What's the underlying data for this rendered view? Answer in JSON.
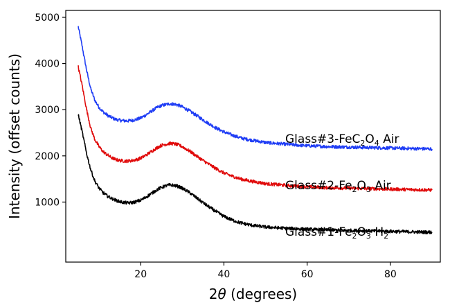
{
  "chart_data": {
    "type": "line",
    "xlabel_prefix": "2",
    "xlabel_symbol": "θ",
    "xlabel_suffix": " (degrees)",
    "ylabel": "Intensity (offset counts)",
    "xlim": [
      2,
      92
    ],
    "ylim": [
      -300,
      5150
    ],
    "xticks": [
      20,
      40,
      60,
      80
    ],
    "yticks": [
      1000,
      2000,
      3000,
      4000,
      5000
    ],
    "grid": false,
    "series": [
      {
        "name": "Glass#3-FeC2O4 Air",
        "label_parts": [
          {
            "t": "Glass#3-FeC",
            "sub": false
          },
          {
            "t": "2",
            "sub": true
          },
          {
            "t": "O",
            "sub": false
          },
          {
            "t": "4",
            "sub": true
          },
          {
            "t": " Air",
            "sub": false
          }
        ],
        "color": "#1f3df5",
        "x": [
          5,
          6,
          7,
          8,
          9,
          10,
          11,
          12,
          13,
          14,
          15,
          16,
          17,
          18,
          19,
          20,
          21,
          22,
          23,
          24,
          25,
          26,
          27,
          28,
          29,
          30,
          32,
          34,
          36,
          38,
          40,
          42,
          44,
          46,
          48,
          50,
          55,
          60,
          65,
          70,
          75,
          80,
          85,
          90
        ],
        "y": [
          4800,
          4350,
          3850,
          3450,
          3200,
          3050,
          2950,
          2880,
          2830,
          2790,
          2770,
          2760,
          2760,
          2770,
          2790,
          2820,
          2870,
          2930,
          2990,
          3050,
          3090,
          3110,
          3130,
          3120,
          3100,
          3060,
          2960,
          2840,
          2720,
          2610,
          2520,
          2450,
          2390,
          2350,
          2320,
          2290,
          2250,
          2220,
          2200,
          2190,
          2180,
          2170,
          2160,
          2150
        ]
      },
      {
        "name": "Glass#2-Fe2O3 Air",
        "label_parts": [
          {
            "t": "Glass#2-Fe",
            "sub": false
          },
          {
            "t": "2",
            "sub": true
          },
          {
            "t": "O",
            "sub": false
          },
          {
            "t": "3",
            "sub": true
          },
          {
            "t": " Air",
            "sub": false
          }
        ],
        "color": "#e00b0b",
        "x": [
          5,
          6,
          7,
          8,
          9,
          10,
          11,
          12,
          13,
          14,
          15,
          16,
          17,
          18,
          19,
          20,
          21,
          22,
          23,
          24,
          25,
          26,
          27,
          28,
          29,
          30,
          32,
          34,
          36,
          38,
          40,
          42,
          44,
          46,
          48,
          50,
          55,
          60,
          65,
          70,
          75,
          80,
          85,
          90
        ],
        "y": [
          3930,
          3500,
          3000,
          2600,
          2350,
          2200,
          2090,
          2020,
          1960,
          1920,
          1900,
          1890,
          1890,
          1900,
          1920,
          1950,
          2000,
          2060,
          2120,
          2180,
          2230,
          2250,
          2270,
          2260,
          2240,
          2200,
          2090,
          1960,
          1840,
          1730,
          1630,
          1560,
          1500,
          1460,
          1430,
          1400,
          1360,
          1330,
          1310,
          1300,
          1290,
          1280,
          1270,
          1260
        ]
      },
      {
        "name": "Glass#1-Fe2O3 H2",
        "label_parts": [
          {
            "t": "Glass#1-Fe",
            "sub": false
          },
          {
            "t": "2",
            "sub": true
          },
          {
            "t": "O",
            "sub": false
          },
          {
            "t": "3",
            "sub": true
          },
          {
            "t": " H",
            "sub": false
          },
          {
            "t": "2",
            "sub": true
          }
        ],
        "color": "#000000",
        "x": [
          5,
          6,
          7,
          8,
          9,
          10,
          11,
          12,
          13,
          14,
          15,
          16,
          17,
          18,
          19,
          20,
          21,
          22,
          23,
          24,
          25,
          26,
          27,
          28,
          29,
          30,
          32,
          34,
          36,
          38,
          40,
          42,
          44,
          46,
          48,
          50,
          55,
          60,
          65,
          70,
          75,
          80,
          85,
          90
        ],
        "y": [
          2900,
          2500,
          2050,
          1700,
          1450,
          1300,
          1200,
          1130,
          1080,
          1040,
          1010,
          990,
          980,
          990,
          1010,
          1040,
          1090,
          1150,
          1210,
          1270,
          1320,
          1350,
          1370,
          1360,
          1340,
          1300,
          1190,
          1050,
          920,
          800,
          690,
          610,
          550,
          510,
          480,
          460,
          430,
          410,
          395,
          385,
          375,
          365,
          355,
          345
        ]
      }
    ]
  }
}
